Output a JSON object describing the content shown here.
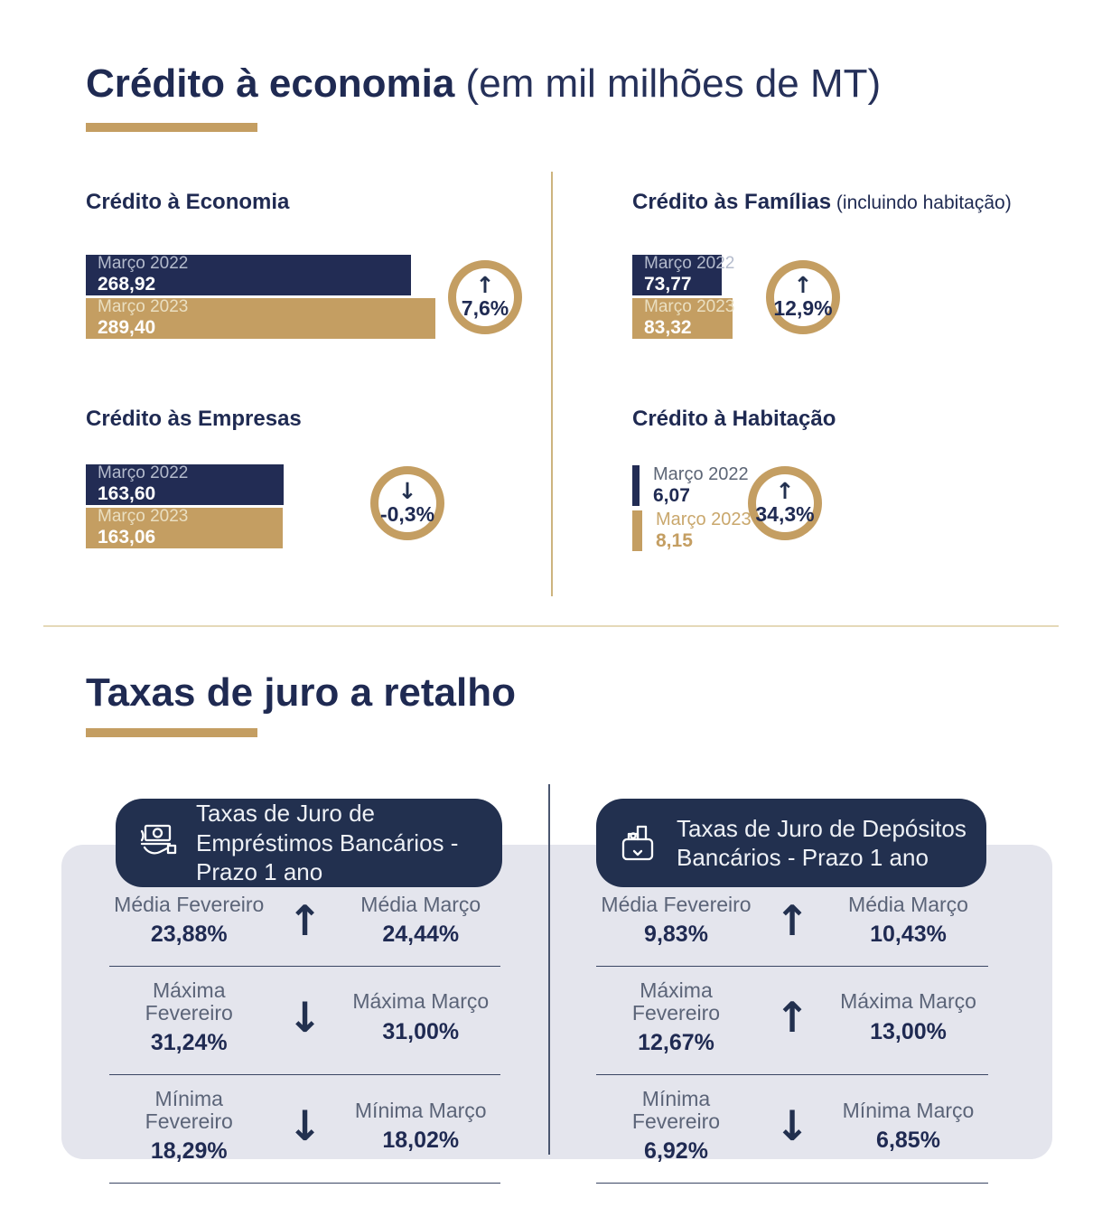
{
  "header": {
    "title_bold": "Crédito à economia",
    "title_light": " (em mil milhões de MT)"
  },
  "charts": [
    {
      "title_bold": "Crédito à Economia",
      "title_light": "",
      "bars": [
        {
          "label": "Março 2022",
          "display": "268,92",
          "value": 268.92,
          "color": "navy"
        },
        {
          "label": "Março 2023",
          "display": "289,40",
          "value": 289.4,
          "color": "gold"
        }
      ],
      "change": {
        "direction": "up",
        "pct": "7,6%"
      }
    },
    {
      "title_bold": "Crédito às Famílias",
      "title_light": " (incluindo habitação)",
      "bars": [
        {
          "label": "Março 2022",
          "display": "73,77",
          "value": 73.77,
          "color": "navy"
        },
        {
          "label": "Março 2023",
          "display": "83,32",
          "value": 83.32,
          "color": "gold"
        }
      ],
      "change": {
        "direction": "up",
        "pct": "12,9%"
      }
    },
    {
      "title_bold": "Crédito às Empresas",
      "title_light": "",
      "bars": [
        {
          "label": "Março 2022",
          "display": "163,60",
          "value": 163.6,
          "color": "navy"
        },
        {
          "label": "Março 2023",
          "display": "163,06",
          "value": 163.06,
          "color": "gold"
        }
      ],
      "change": {
        "direction": "down",
        "pct": "-0,3%"
      }
    },
    {
      "title_bold": "Crédito à Habitação",
      "title_light": "",
      "bars": [
        {
          "label": "Março 2022",
          "display": "6,07",
          "value": 6.07,
          "color": "navy"
        },
        {
          "label": "Março 2023",
          "display": "8,15",
          "value": 8.15,
          "color": "gold"
        }
      ],
      "change": {
        "direction": "up",
        "pct": "34,3%"
      }
    }
  ],
  "retail": {
    "title": "Taxas de juro a retalho",
    "panels": [
      {
        "icon": "money-hand-icon",
        "header": "Taxas de Juro de Empréstimos Bancários - Prazo 1 ano",
        "rows": [
          {
            "left_label": "Média Fevereiro",
            "left_value": "23,88%",
            "direction": "up",
            "right_label": "Média Março",
            "right_value": "24,44%"
          },
          {
            "left_label": "Máxima Fevereiro",
            "left_value": "31,24%",
            "direction": "down",
            "right_label": "Máxima Março",
            "right_value": "31,00%"
          },
          {
            "left_label": "Mínima Fevereiro",
            "left_value": "18,29%",
            "direction": "down",
            "right_label": "Mínima Março",
            "right_value": "18,02%"
          }
        ]
      },
      {
        "icon": "deposit-box-icon",
        "header": "Taxas de Juro de Depósitos Bancários - Prazo 1 ano",
        "rows": [
          {
            "left_label": "Média Fevereiro",
            "left_value": "9,83%",
            "direction": "up",
            "right_label": "Média Março",
            "right_value": "10,43%"
          },
          {
            "left_label": "Máxima Fevereiro",
            "left_value": "12,67%",
            "direction": "up",
            "right_label": "Máxima Março",
            "right_value": "13,00%"
          },
          {
            "left_label": "Mínima Fevereiro",
            "left_value": "6,92%",
            "direction": "down",
            "right_label": "Mínima Março",
            "right_value": "6,85%"
          }
        ]
      }
    ]
  },
  "colors": {
    "navy": "#222c54",
    "gold": "#c49e62",
    "panel_bg": "#e4e5ed",
    "label_gray": "#5b6478",
    "divider_gold": "#cdb47e",
    "divider_navy": "#4a5670"
  },
  "chart_data": [
    {
      "type": "bar",
      "title": "Crédito à Economia",
      "unit": "mil milhões de MT",
      "categories": [
        "Março 2022",
        "Março 2023"
      ],
      "values": [
        268.92,
        289.4
      ],
      "change_pct": "+7,6%"
    },
    {
      "type": "bar",
      "title": "Crédito às Famílias (incluindo habitação)",
      "unit": "mil milhões de MT",
      "categories": [
        "Março 2022",
        "Março 2023"
      ],
      "values": [
        73.77,
        83.32
      ],
      "change_pct": "+12,9%"
    },
    {
      "type": "bar",
      "title": "Crédito às Empresas",
      "unit": "mil milhões de MT",
      "categories": [
        "Março 2022",
        "Março 2023"
      ],
      "values": [
        163.6,
        163.06
      ],
      "change_pct": "-0,3%"
    },
    {
      "type": "bar",
      "title": "Crédito à Habitação",
      "unit": "mil milhões de MT",
      "categories": [
        "Março 2022",
        "Março 2023"
      ],
      "values": [
        6.07,
        8.15
      ],
      "change_pct": "+34,3%"
    },
    {
      "type": "table",
      "title": "Taxas de Juro de Empréstimos Bancários - Prazo 1 ano",
      "columns": [
        "Fevereiro",
        "tendência",
        "Março"
      ],
      "rows": [
        [
          "Média",
          "23,88%",
          "up",
          "24,44%"
        ],
        [
          "Máxima",
          "31,24%",
          "down",
          "31,00%"
        ],
        [
          "Mínima",
          "18,29%",
          "down",
          "18,02%"
        ]
      ]
    },
    {
      "type": "table",
      "title": "Taxas de Juro de Depósitos Bancários - Prazo 1 ano",
      "columns": [
        "Fevereiro",
        "tendência",
        "Março"
      ],
      "rows": [
        [
          "Média",
          "9,83%",
          "up",
          "10,43%"
        ],
        [
          "Máxima",
          "12,67%",
          "up",
          "13,00%"
        ],
        [
          "Mínima",
          "6,92%",
          "down",
          "6,85%"
        ]
      ]
    }
  ]
}
